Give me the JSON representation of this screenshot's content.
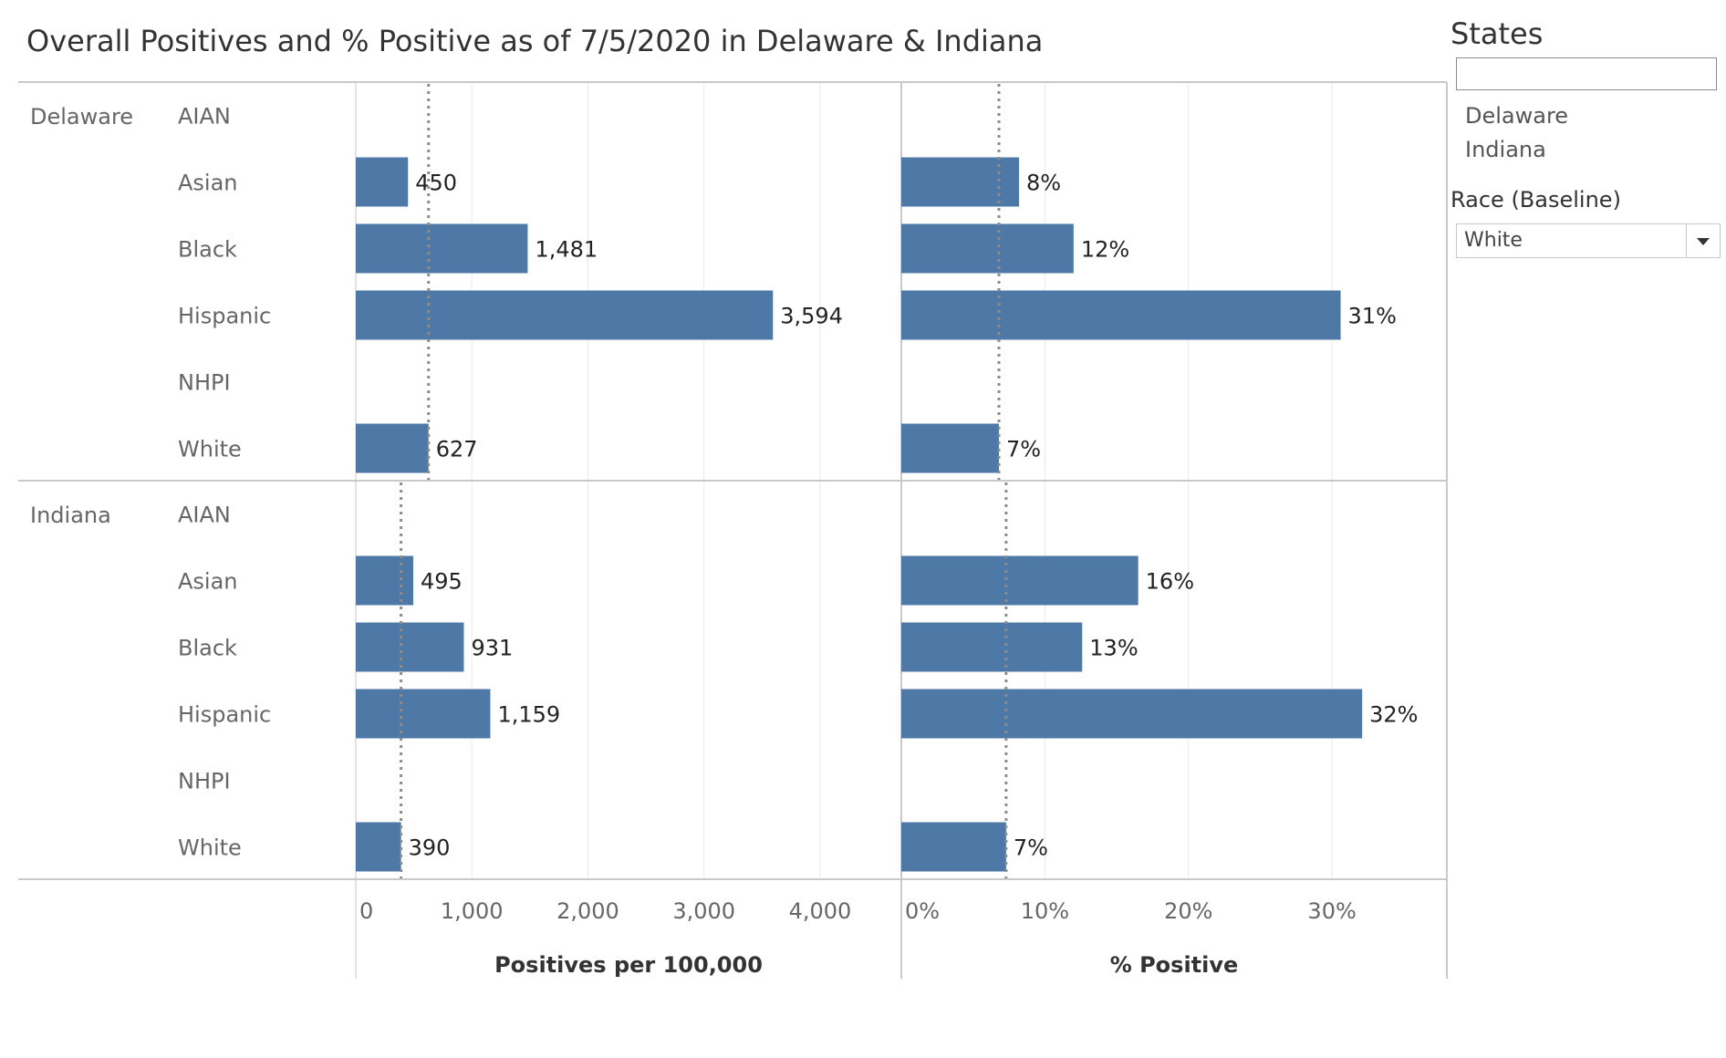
{
  "title": "Overall Positives and % Positive as of 7/5/2020 in Delaware & Indiana",
  "filters": {
    "states_title": "States",
    "states_options": [
      "Delaware",
      "Indiana"
    ],
    "race_title": "Race (Baseline)",
    "race_selected": "White"
  },
  "colors": {
    "bar": "#4e79a7",
    "reference_line": "#8c8c8c",
    "grid": "#e9e9e9",
    "divider": "#c9c9c9"
  },
  "chart_data": [
    {
      "type": "bar",
      "orientation": "horizontal",
      "xlabel": "Positives per 100,000",
      "xlim": [
        0,
        4700
      ],
      "ticks": [
        0,
        1000,
        2000,
        3000,
        4000
      ],
      "tick_labels": [
        "0",
        "1,000",
        "2,000",
        "3,000",
        "4,000"
      ],
      "groups": [
        {
          "name": "Delaware",
          "categories": [
            "AIAN",
            "Asian",
            "Black",
            "Hispanic",
            "NHPI",
            "White"
          ],
          "values": [
            null,
            450,
            1481,
            3594,
            null,
            627
          ],
          "labels": [
            "",
            "450",
            "1,481",
            "3,594",
            "",
            "627"
          ],
          "reference": 627
        },
        {
          "name": "Indiana",
          "categories": [
            "AIAN",
            "Asian",
            "Black",
            "Hispanic",
            "NHPI",
            "White"
          ],
          "values": [
            null,
            495,
            931,
            1159,
            null,
            390
          ],
          "labels": [
            "",
            "495",
            "931",
            "1,159",
            "",
            "390"
          ],
          "reference": 390
        }
      ]
    },
    {
      "type": "bar",
      "orientation": "horizontal",
      "xlabel": "% Positive",
      "xlim": [
        0,
        38
      ],
      "ticks": [
        0,
        10,
        20,
        30
      ],
      "tick_labels": [
        "0%",
        "10%",
        "20%",
        "30%"
      ],
      "groups": [
        {
          "name": "Delaware",
          "categories": [
            "AIAN",
            "Asian",
            "Black",
            "Hispanic",
            "NHPI",
            "White"
          ],
          "values": [
            null,
            8.2,
            12.0,
            30.6,
            null,
            6.8
          ],
          "labels": [
            "",
            "8%",
            "12%",
            "31%",
            "",
            "7%"
          ],
          "reference": 6.8
        },
        {
          "name": "Indiana",
          "categories": [
            "AIAN",
            "Asian",
            "Black",
            "Hispanic",
            "NHPI",
            "White"
          ],
          "values": [
            null,
            16.5,
            12.6,
            32.1,
            null,
            7.3
          ],
          "labels": [
            "",
            "16%",
            "13%",
            "32%",
            "",
            "7%"
          ],
          "reference": 7.3
        }
      ]
    }
  ]
}
